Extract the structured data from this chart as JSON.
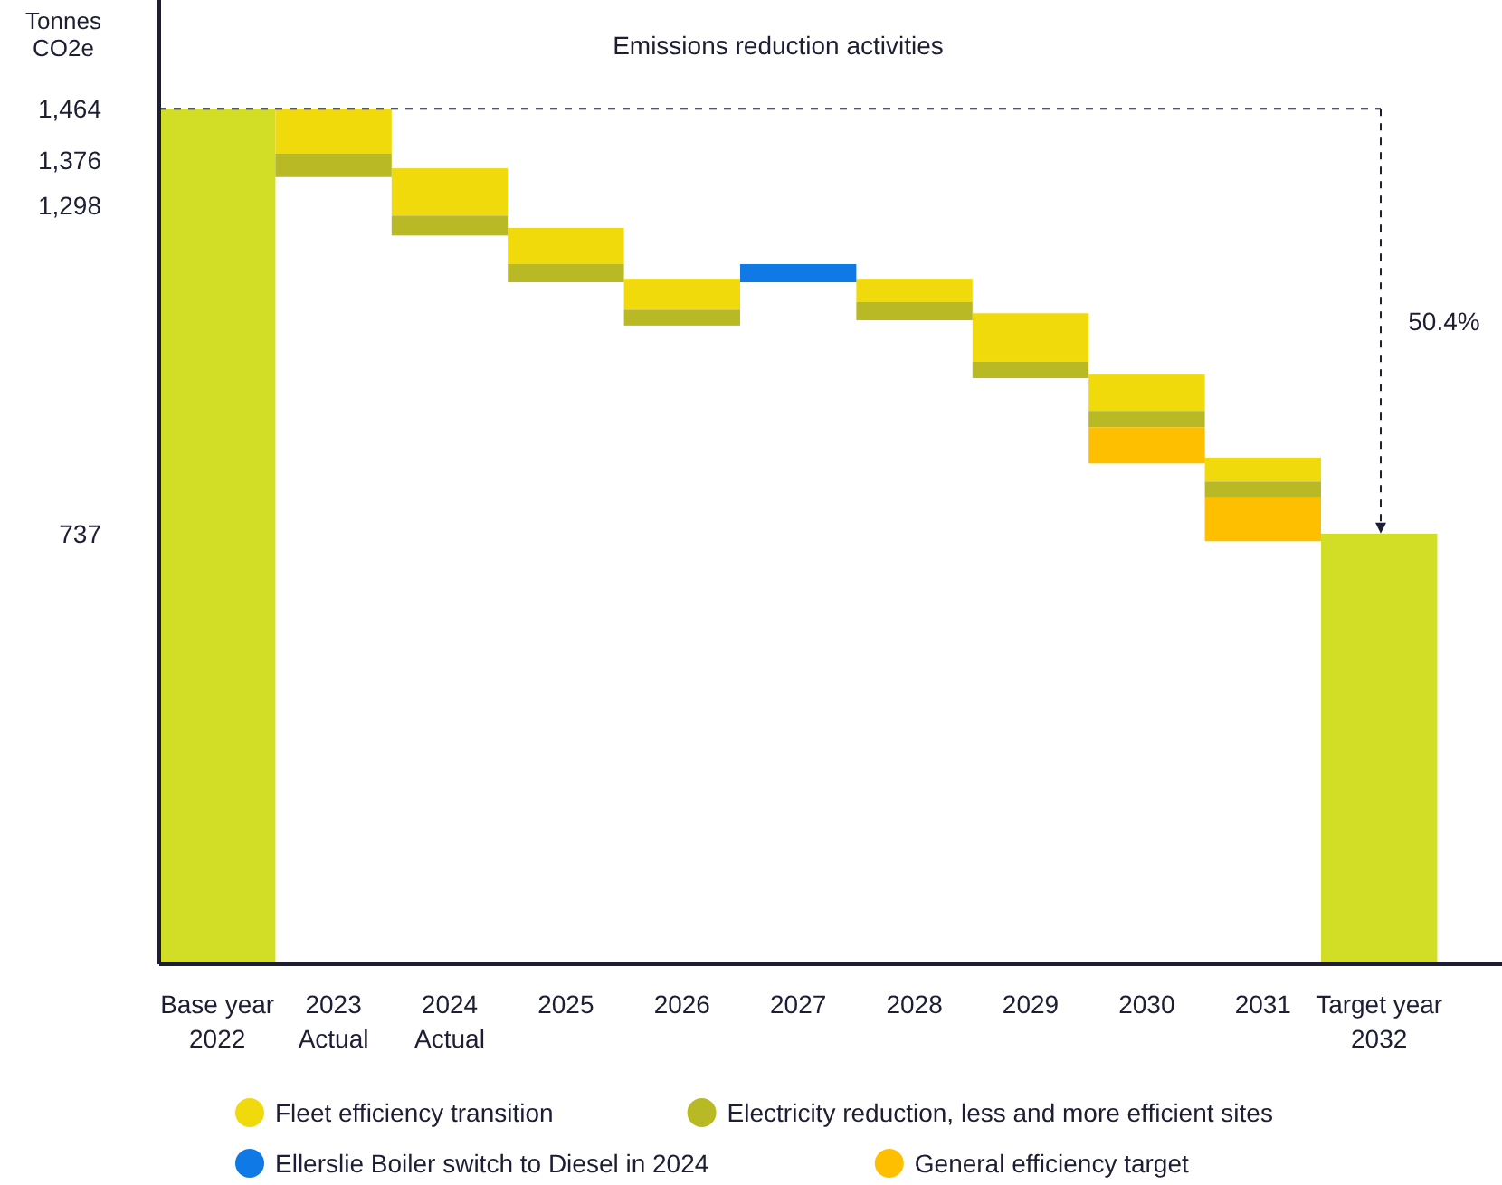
{
  "chart_data": {
    "type": "bar",
    "title": "Emissions reduction activities",
    "ylabel": "Tonnes CO2e",
    "categories": [
      "Base year 2022",
      "2023 Actual",
      "2024 Actual",
      "2025",
      "2026",
      "2027",
      "2028",
      "2029",
      "2030",
      "2031",
      "Target year 2032"
    ],
    "series": [
      {
        "color": "#d2dd26",
        "values": [
          1464,
          null,
          null,
          null,
          null,
          null,
          null,
          null,
          null,
          null,
          737
        ],
        "base": [
          0,
          null,
          null,
          null,
          null,
          null,
          null,
          null,
          null,
          null,
          0
        ]
      },
      {
        "name": "Fleet efficiency transition",
        "color": "#f0da0b",
        "values": [
          null,
          -77,
          -81,
          -62,
          -53,
          null,
          -40,
          -83,
          -62,
          -41,
          null
        ],
        "base": [
          null,
          1464,
          1362,
          1260,
          1173,
          null,
          1173,
          1114,
          1009,
          867,
          null
        ]
      },
      {
        "name": "Electricity reduction, less and more efficient sites",
        "color": "#b8b924",
        "values": [
          null,
          -40,
          -34,
          -31,
          -27,
          null,
          -31,
          -28,
          -28,
          -27,
          null
        ],
        "base": [
          null,
          1387,
          1281,
          1198,
          1120,
          null,
          1133,
          1031,
          947,
          826,
          null
        ]
      },
      {
        "name": "Ellerslie Boiler switch to Diesel in 2024",
        "color": "#0f7ae5",
        "values": [
          null,
          null,
          null,
          null,
          null,
          31,
          null,
          null,
          null,
          null,
          null
        ],
        "base": [
          null,
          null,
          null,
          null,
          null,
          1167,
          null,
          null,
          null,
          null,
          null
        ]
      },
      {
        "name": "General efficiency target",
        "color": "#fdbf00",
        "values": [
          null,
          null,
          null,
          null,
          null,
          null,
          null,
          null,
          -62,
          -75,
          null
        ],
        "base": [
          null,
          null,
          null,
          null,
          null,
          null,
          null,
          null,
          919,
          799,
          null
        ]
      }
    ],
    "ylim": [
      0,
      1650
    ],
    "yticks": [
      {
        "value": 1464,
        "label": "1,464"
      },
      {
        "value": 1376,
        "label": "1,376"
      },
      {
        "value": 1298,
        "label": "1,298"
      },
      {
        "value": 737,
        "label": "737"
      }
    ],
    "annotations": [
      "50.4%"
    ],
    "legend": "bottom"
  }
}
